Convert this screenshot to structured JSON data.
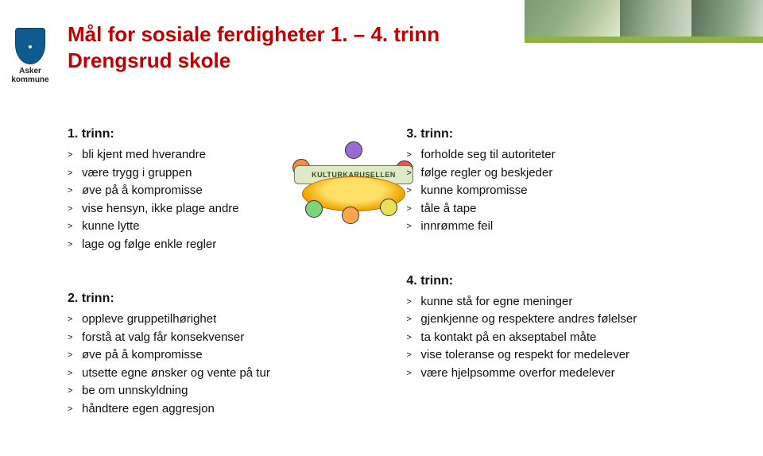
{
  "brand": {
    "name_line1": "Asker",
    "name_line2": "kommune",
    "crest_bg": "#0f5a8f"
  },
  "title": {
    "main": "Mål for sosiale ferdigheter  1. – 4. trinn",
    "sub": "Drengsrud skole",
    "color": "#c00000"
  },
  "accent_stripe_color": "#8fb33e",
  "clipart_banner": "KULTURKARUSELLEN",
  "sections": [
    {
      "heading": "1. trinn:",
      "items": [
        "bli kjent med hverandre",
        "være trygg i gruppen",
        "øve på å kompromisse",
        "vise hensyn, ikke plage andre",
        "kunne lytte",
        "lage og følge enkle regler"
      ]
    },
    {
      "heading": "2. trinn:",
      "items": [
        "oppleve gruppetilhørighet",
        "forstå at valg får konsekvenser",
        "øve på å kompromisse",
        "utsette egne ønsker og vente på tur",
        "be om unnskyldning",
        "håndtere egen aggresjon"
      ]
    },
    {
      "heading": "3. trinn:",
      "items": [
        "forholde seg til autoriteter",
        "følge regler og beskjeder",
        "kunne kompromisse",
        "tåle å tape",
        "innrømme feil"
      ]
    },
    {
      "heading": "4. trinn:",
      "items": [
        "kunne stå for egne meninger",
        "gjenkjenne og respektere andres følelser",
        "ta kontakt på en akseptabel måte",
        "vise toleranse og respekt for medelever",
        "være hjelpsomme overfor medelever"
      ]
    }
  ]
}
